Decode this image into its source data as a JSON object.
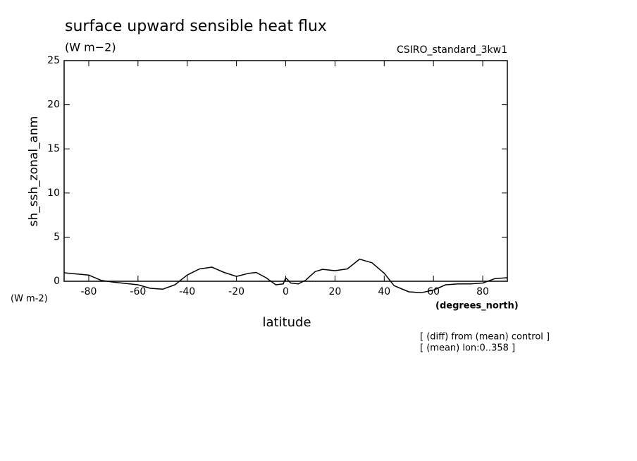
{
  "chart_data": {
    "type": "line",
    "title": "surface upward sensible heat flux",
    "units": "(W m−2)",
    "subtitle_right": "CSIRO_standard_3kw1",
    "y_label": "sh_ssh_zonal_anm",
    "y_units": "(W m-2)",
    "x_units": "(degrees_north)",
    "x_label": "latitude",
    "notes": [
      "[ (diff) from (mean) control ]",
      "[ (mean) lon:0..358 ]"
    ],
    "x": [
      -90,
      -80,
      -75,
      -70,
      -60,
      -55,
      -50,
      -45,
      -40,
      -35,
      -30,
      -25,
      -20,
      -15,
      -12,
      -8,
      -4,
      -1,
      0,
      2,
      5,
      8,
      12,
      15,
      20,
      25,
      30,
      35,
      40,
      44,
      50,
      55,
      60,
      65,
      70,
      75,
      80,
      85,
      90
    ],
    "values": [
      0.96,
      0.7,
      0.1,
      -0.1,
      -0.4,
      -0.8,
      -0.9,
      -0.4,
      0.7,
      1.4,
      1.6,
      1.0,
      0.55,
      0.9,
      1.0,
      0.4,
      -0.4,
      -0.3,
      0.4,
      -0.2,
      -0.3,
      0.1,
      1.1,
      1.35,
      1.2,
      1.4,
      2.5,
      2.1,
      0.9,
      -0.5,
      -1.2,
      -1.3,
      -1.0,
      -0.4,
      -0.3,
      -0.3,
      -0.2,
      0.3,
      0.4
    ],
    "color": "#000000",
    "xlim": [
      -90,
      90
    ],
    "xticks": [
      -80,
      -60,
      -40,
      -20,
      0,
      20,
      40,
      60,
      80
    ],
    "ylim": [
      0,
      25
    ],
    "yticks": [
      0,
      5,
      10,
      15,
      20,
      25
    ]
  }
}
